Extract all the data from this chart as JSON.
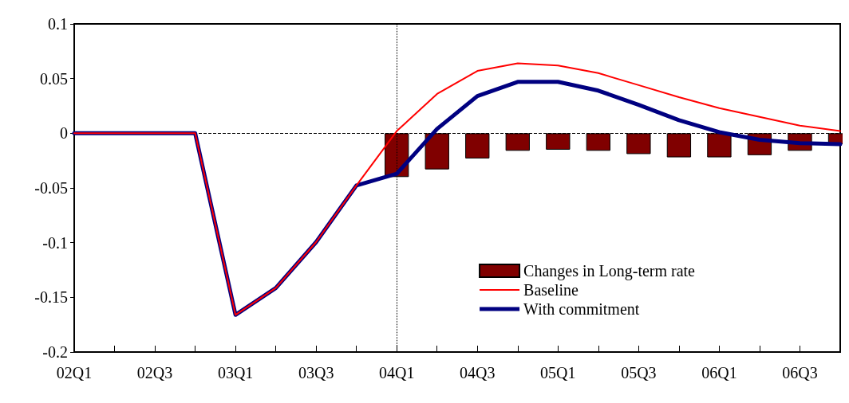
{
  "chart_data": {
    "type": "line",
    "categories": [
      "02Q1",
      null,
      "02Q3",
      null,
      "03Q1",
      null,
      "03Q3",
      null,
      "04Q1",
      null,
      "04Q3",
      null,
      "05Q1",
      null,
      "05Q3",
      null,
      "06Q1",
      null,
      "06Q3",
      null
    ],
    "series": [
      {
        "name": "Changes in Long-term rate",
        "type": "bar",
        "color": "#800000",
        "values": [
          null,
          null,
          null,
          null,
          null,
          null,
          null,
          null,
          -0.04,
          -0.033,
          -0.023,
          -0.016,
          -0.015,
          -0.016,
          -0.019,
          -0.022,
          -0.022,
          -0.02,
          -0.016,
          -0.01
        ]
      },
      {
        "name": "Baseline",
        "color": "#ff0000",
        "values": [
          0,
          0,
          0,
          0,
          -0.166,
          -0.1415,
          -0.0995,
          -0.0477,
          0.002,
          0.036,
          0.057,
          0.064,
          0.062,
          0.055,
          0.044,
          0.033,
          0.023,
          0.015,
          0.007,
          0.002
        ]
      },
      {
        "name": "With commitment",
        "color": "#000080",
        "values": [
          0,
          0,
          0,
          0,
          -0.166,
          -0.1415,
          -0.0995,
          -0.0477,
          -0.037,
          0.004,
          0.034,
          0.047,
          0.047,
          0.039,
          0.026,
          0.012,
          0.001,
          -0.006,
          -0.009,
          -0.01
        ]
      }
    ],
    "ylim": [
      -0.2,
      0.1
    ],
    "yticks": [
      -0.2,
      -0.15,
      -0.1,
      -0.05,
      0,
      0.05,
      0.1
    ],
    "ref_lines": [
      {
        "axis": "y",
        "value": 0,
        "line_style": "dashed",
        "color": "#000000"
      },
      {
        "axis": "x",
        "value": "04Q1",
        "line_style": "dotted",
        "color": "#000000"
      }
    ],
    "grid": false,
    "legend": "bottom right",
    "marker": "none"
  }
}
